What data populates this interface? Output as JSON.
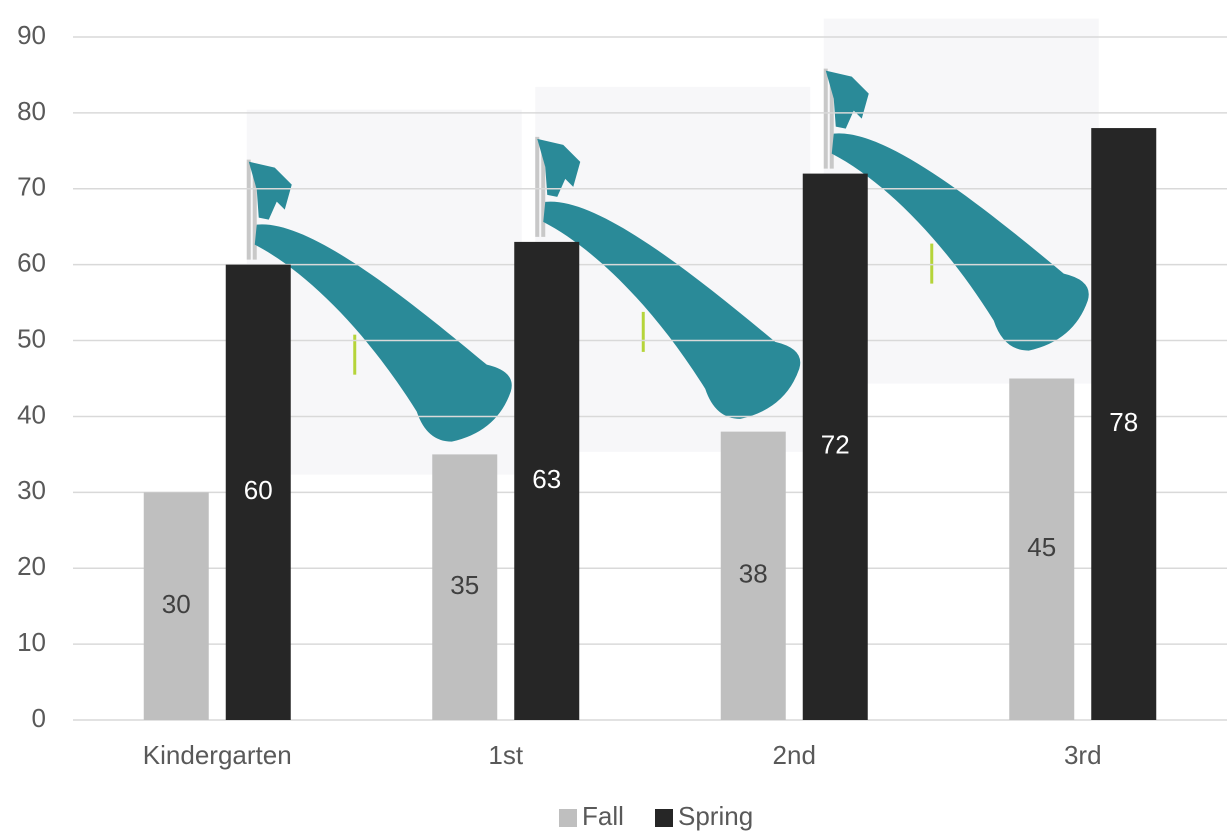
{
  "chart_data": {
    "type": "bar",
    "categories": [
      "Kindergarten",
      "1st",
      "2nd",
      "3rd"
    ],
    "series": [
      {
        "name": "Fall",
        "color": "#bfbfbf",
        "values": [
          30,
          35,
          38,
          45
        ]
      },
      {
        "name": "Spring",
        "color": "#262626",
        "values": [
          60,
          63,
          72,
          78
        ]
      }
    ],
    "ylim": [
      0,
      90
    ],
    "yticks": [
      0,
      10,
      20,
      30,
      40,
      50,
      60,
      70,
      80,
      90
    ],
    "grid": true,
    "legend": "bottom"
  }
}
